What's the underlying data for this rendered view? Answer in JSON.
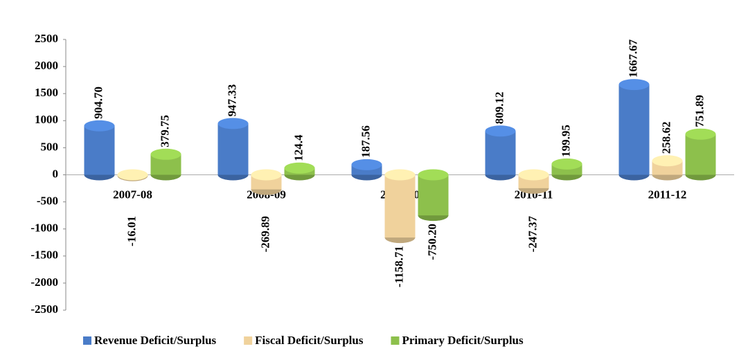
{
  "chart_data": {
    "type": "bar",
    "categories": [
      "2007-08",
      "2008-09",
      "2009-10",
      "2010-11",
      "2011-12"
    ],
    "series": [
      {
        "name": "Revenue Deficit/Surplus",
        "color": "#4a7cc8",
        "values": [
          904.7,
          947.33,
          187.56,
          809.12,
          1667.67
        ],
        "value_labels": [
          "904.70",
          "947.33",
          "187.56",
          "809.12",
          "1667.67"
        ]
      },
      {
        "name": "Fiscal Deficit/Surplus",
        "color": "#f0d29c",
        "values": [
          -16.01,
          -269.89,
          -1158.71,
          -247.37,
          258.62
        ],
        "value_labels": [
          "-16.01",
          "-269.89",
          "-1158.71",
          "-247.37",
          "258.62"
        ]
      },
      {
        "name": "Primary Deficit/Surplus",
        "color": "#8dc04c",
        "values": [
          379.75,
          124.4,
          -750.2,
          199.95,
          751.89
        ],
        "value_labels": [
          "379.75",
          "124.4",
          "-750.20",
          "199.95",
          "751.89"
        ]
      }
    ],
    "ylim": [
      -2500,
      2500
    ],
    "yticks": [
      -2500,
      -2000,
      -1500,
      -1000,
      -500,
      0,
      500,
      1000,
      1500,
      2000,
      2500
    ],
    "legend": "bottom"
  }
}
